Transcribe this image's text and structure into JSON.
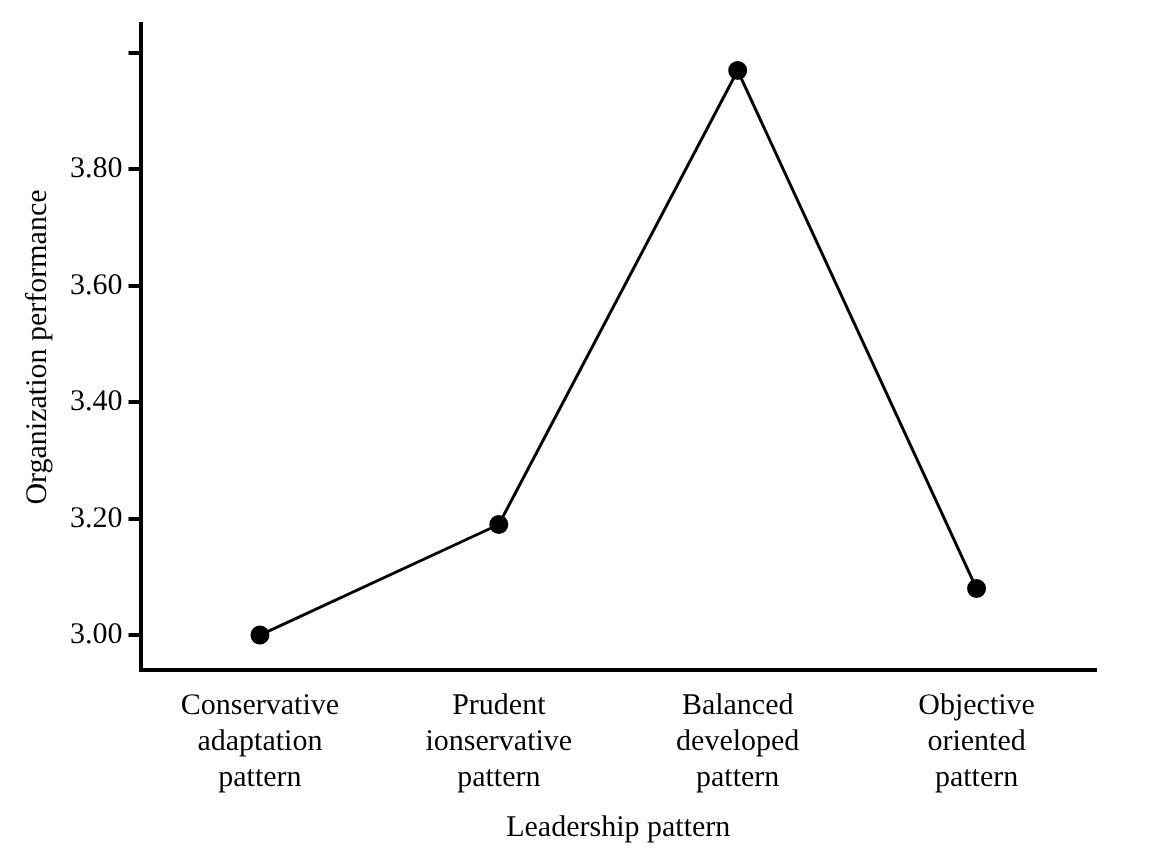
{
  "chart_data": {
    "type": "line",
    "xlabel": "Leadership pattern",
    "ylabel": "Organization performance",
    "categories": [
      "Conservative adaptation pattern",
      "Prudent ionservative pattern",
      "Balanced developed pattern",
      "Objective oriented pattern"
    ],
    "series": [
      {
        "color": "#000000",
        "values": [
          3.0,
          3.19,
          3.97,
          3.08
        ]
      }
    ],
    "ylim": [
      2.94,
      4.05
    ],
    "yticks": [
      {
        "value": 3.0,
        "label": "3.00"
      },
      {
        "value": 3.2,
        "label": "3.20"
      },
      {
        "value": 3.4,
        "label": "3.40"
      },
      {
        "value": 3.6,
        "label": "3.60"
      },
      {
        "value": 3.8,
        "label": "3.80"
      },
      {
        "value": 4.0,
        "label": null
      }
    ],
    "grid": false,
    "legend": false,
    "marker": "circle",
    "line_style": "solid"
  }
}
